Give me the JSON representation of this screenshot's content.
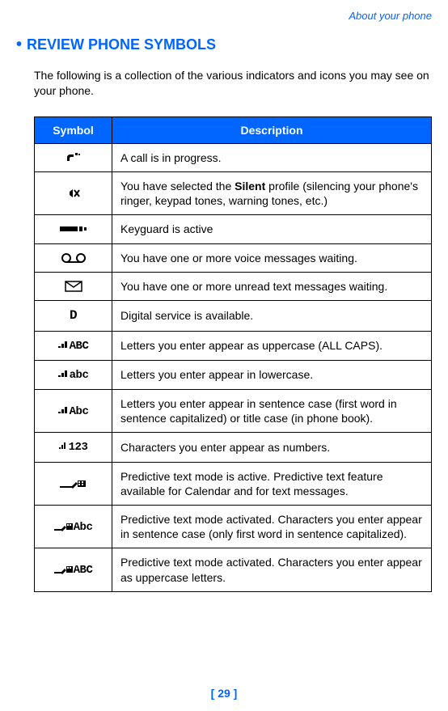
{
  "breadcrumb": "About your phone",
  "heading": "REVIEW PHONE SYMBOLS",
  "intro": "The following is a collection of the various indicators and icons you may see on your phone.",
  "table": {
    "header_bg": "#0066ff",
    "header_color": "#ffffff",
    "columns": [
      "Symbol",
      "Description"
    ],
    "rows": [
      {
        "sym": "call",
        "desc_parts": [
          {
            "t": "A call is in progress."
          }
        ]
      },
      {
        "sym": "silent",
        "desc_parts": [
          {
            "t": "You have selected the "
          },
          {
            "t": "Silent",
            "bold": true
          },
          {
            "t": " profile (silencing your phone's ringer, keypad tones, warning tones, etc.)"
          }
        ]
      },
      {
        "sym": "keyguard",
        "desc_parts": [
          {
            "t": "Keyguard is active"
          }
        ]
      },
      {
        "sym": "voicemail",
        "desc_parts": [
          {
            "t": "You have one or more voice messages waiting."
          }
        ]
      },
      {
        "sym": "textmsg",
        "desc_parts": [
          {
            "t": "You have one or more unread text messages waiting."
          }
        ]
      },
      {
        "sym": "digital",
        "desc_parts": [
          {
            "t": "Digital service is available."
          }
        ]
      },
      {
        "sym": "abc_up",
        "desc_parts": [
          {
            "t": "Letters you enter appear as uppercase (ALL CAPS)."
          }
        ]
      },
      {
        "sym": "abc_low",
        "desc_parts": [
          {
            "t": "Letters you enter appear in lowercase."
          }
        ]
      },
      {
        "sym": "abc_sent",
        "desc_parts": [
          {
            "t": "Letters you enter appear in sentence case (first word in sentence capitalized) or title case (in phone book)."
          }
        ]
      },
      {
        "sym": "num123",
        "desc_parts": [
          {
            "t": "Characters you enter appear as numbers."
          }
        ]
      },
      {
        "sym": "pred",
        "desc_parts": [
          {
            "t": "Predictive text mode is active. Predictive text feature available for Calendar and for text messages."
          }
        ]
      },
      {
        "sym": "pred_abc",
        "desc_parts": [
          {
            "t": "Predictive text mode activated. Characters you enter appear in sentence case (only first word in sentence capitalized)."
          }
        ]
      },
      {
        "sym": "pred_ABC",
        "desc_parts": [
          {
            "t": "Predictive text mode activated. Characters you enter appear as uppercase letters."
          }
        ]
      }
    ]
  },
  "symbol_labels": {
    "call": "",
    "silent": "",
    "keyguard": "",
    "voicemail": "",
    "textmsg": "",
    "digital": "D",
    "abc_up": "ABC",
    "abc_low": "abc",
    "abc_sent": "Abc",
    "num123": "123",
    "pred": "",
    "pred_abc": "Abc",
    "pred_ABC": "ABC"
  },
  "footer": "[ 29 ]",
  "colors": {
    "accent": "#0066ff",
    "text": "#000000",
    "bg": "#ffffff"
  },
  "typography": {
    "body_fontsize": 14,
    "heading_fontsize": 18,
    "font_family": "Trebuchet MS"
  }
}
